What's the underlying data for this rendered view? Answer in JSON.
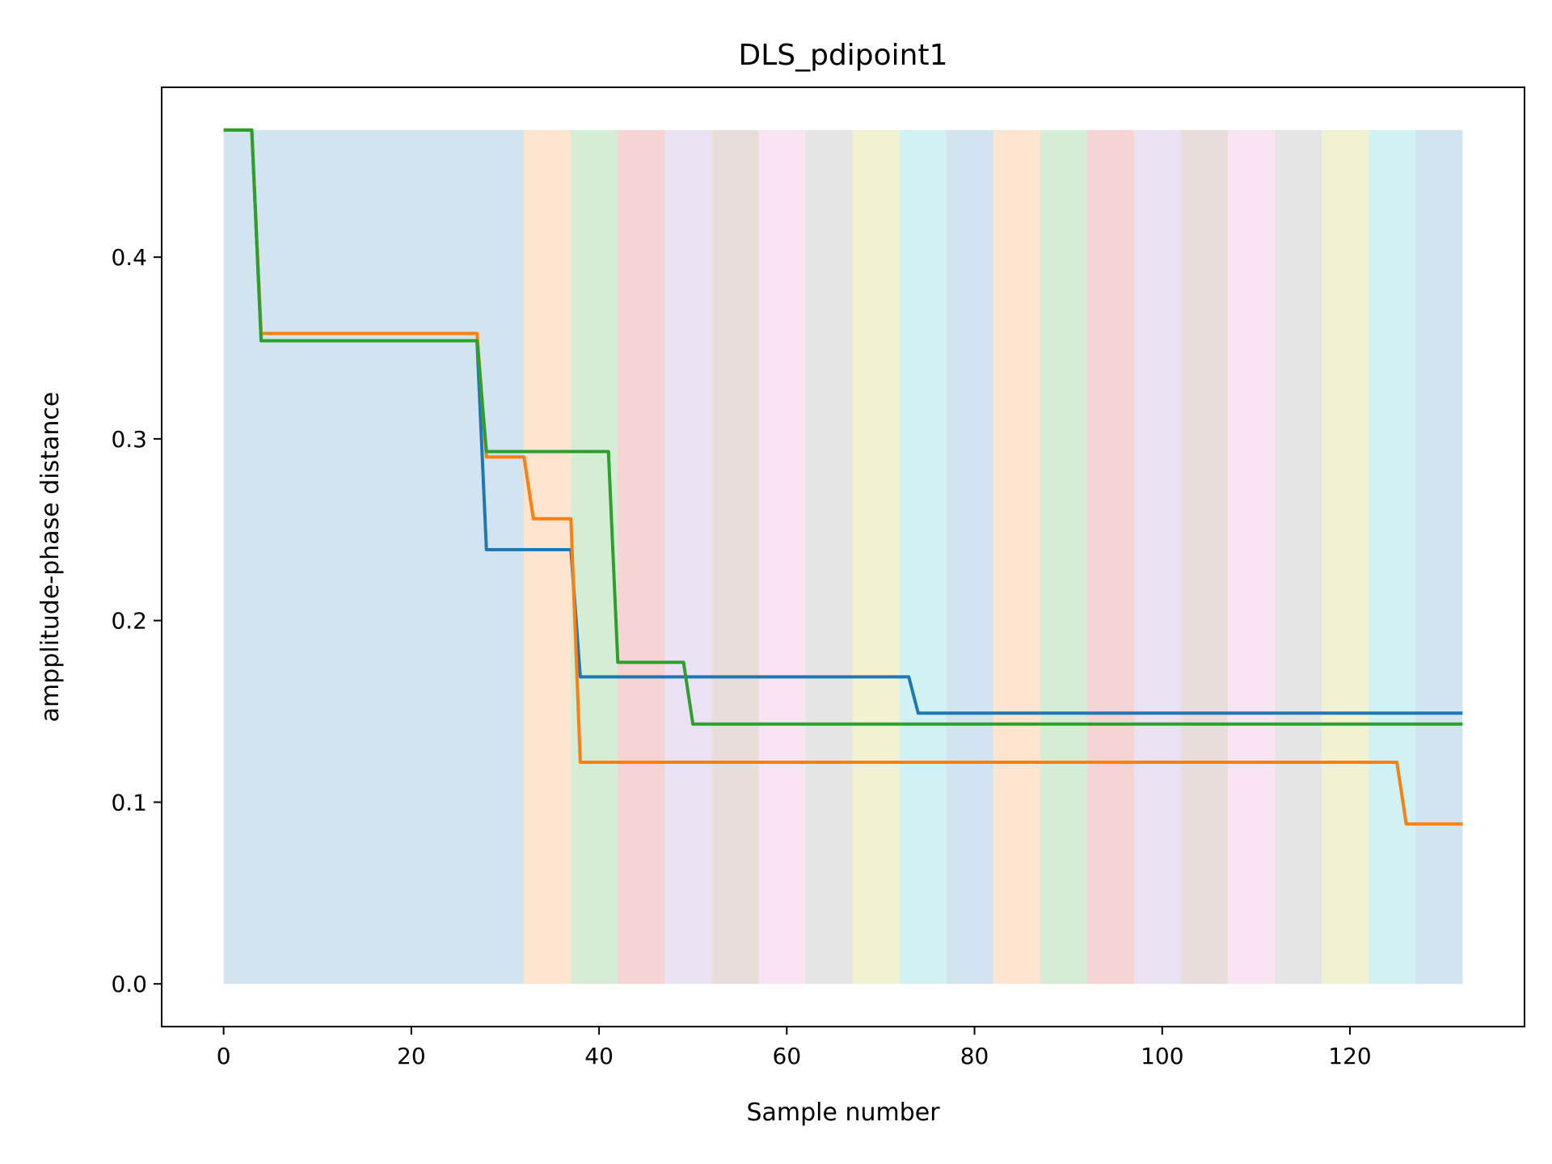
{
  "chart_data": {
    "type": "line",
    "title": "DLS_pdipoint1",
    "xlabel": "Sample number",
    "ylabel": "ampplitude-phase distance",
    "xlim": [
      -6.6,
      138.6
    ],
    "ylim": [
      -0.0235,
      0.4935
    ],
    "xticks": [
      0,
      20,
      40,
      60,
      80,
      100,
      120
    ],
    "yticks": [
      0.0,
      0.1,
      0.2,
      0.3,
      0.4
    ],
    "xtick_labels": [
      "0",
      "20",
      "40",
      "60",
      "80",
      "100",
      "120"
    ],
    "ytick_labels": [
      "0.0",
      "0.1",
      "0.2",
      "0.3",
      "0.4"
    ],
    "grid": false,
    "legend": null,
    "background_bands": {
      "ymin": 0.0,
      "ymax": 0.47,
      "opacity": 0.2,
      "bands": [
        {
          "x0": 0,
          "x1": 32,
          "color": "#1f77b4"
        },
        {
          "x0": 32,
          "x1": 37,
          "color": "#ff7f0e"
        },
        {
          "x0": 37,
          "x1": 42,
          "color": "#2ca02c"
        },
        {
          "x0": 42,
          "x1": 47,
          "color": "#d62728"
        },
        {
          "x0": 47,
          "x1": 52,
          "color": "#9467bd"
        },
        {
          "x0": 52,
          "x1": 57,
          "color": "#8c564b"
        },
        {
          "x0": 57,
          "x1": 62,
          "color": "#e377c2"
        },
        {
          "x0": 62,
          "x1": 67,
          "color": "#7f7f7f"
        },
        {
          "x0": 67,
          "x1": 72,
          "color": "#bcbd22"
        },
        {
          "x0": 72,
          "x1": 77,
          "color": "#17becf"
        },
        {
          "x0": 77,
          "x1": 82,
          "color": "#1f77b4"
        },
        {
          "x0": 82,
          "x1": 87,
          "color": "#ff7f0e"
        },
        {
          "x0": 87,
          "x1": 92,
          "color": "#2ca02c"
        },
        {
          "x0": 92,
          "x1": 97,
          "color": "#d62728"
        },
        {
          "x0": 97,
          "x1": 102,
          "color": "#9467bd"
        },
        {
          "x0": 102,
          "x1": 107,
          "color": "#8c564b"
        },
        {
          "x0": 107,
          "x1": 112,
          "color": "#e377c2"
        },
        {
          "x0": 112,
          "x1": 117,
          "color": "#7f7f7f"
        },
        {
          "x0": 117,
          "x1": 122,
          "color": "#bcbd22"
        },
        {
          "x0": 122,
          "x1": 127,
          "color": "#17becf"
        },
        {
          "x0": 127,
          "x1": 132,
          "color": "#1f77b4"
        }
      ]
    },
    "series": [
      {
        "color": "#1f77b4",
        "points": [
          [
            0,
            0.47
          ],
          [
            3,
            0.47
          ],
          [
            4,
            0.354
          ],
          [
            27,
            0.354
          ],
          [
            28,
            0.239
          ],
          [
            37,
            0.239
          ],
          [
            38,
            0.169
          ],
          [
            73,
            0.169
          ],
          [
            74,
            0.149
          ],
          [
            132,
            0.149
          ]
        ]
      },
      {
        "color": "#ff7f0e",
        "points": [
          [
            0,
            0.47
          ],
          [
            3,
            0.47
          ],
          [
            4,
            0.358
          ],
          [
            27,
            0.358
          ],
          [
            28,
            0.29
          ],
          [
            32,
            0.29
          ],
          [
            33,
            0.256
          ],
          [
            37,
            0.256
          ],
          [
            38,
            0.122
          ],
          [
            125,
            0.122
          ],
          [
            126,
            0.088
          ],
          [
            132,
            0.088
          ]
        ]
      },
      {
        "color": "#2ca02c",
        "points": [
          [
            0,
            0.47
          ],
          [
            3,
            0.47
          ],
          [
            4,
            0.354
          ],
          [
            27,
            0.354
          ],
          [
            28,
            0.293
          ],
          [
            41,
            0.293
          ],
          [
            42,
            0.177
          ],
          [
            49,
            0.177
          ],
          [
            50,
            0.143
          ],
          [
            132,
            0.143
          ]
        ]
      }
    ]
  }
}
